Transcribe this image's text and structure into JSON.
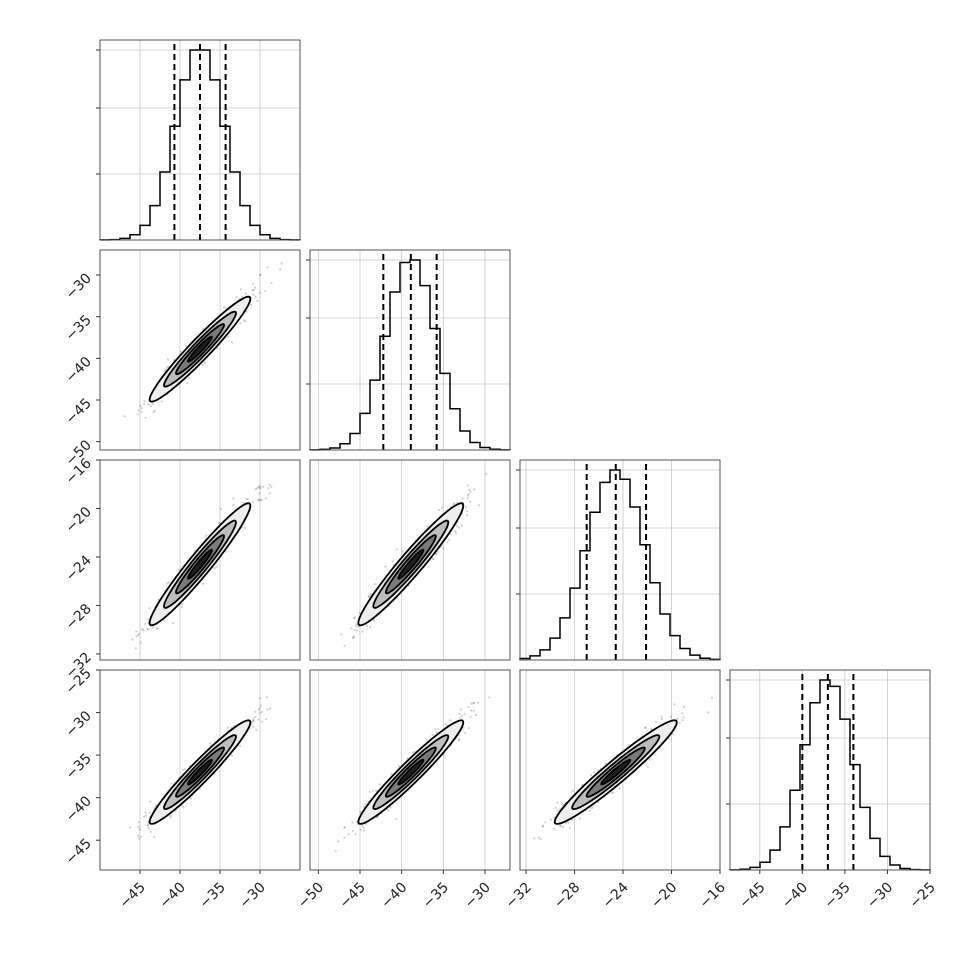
{
  "chart_data": {
    "type": "corner",
    "grid": true,
    "params": [
      {
        "range": [
          -50,
          -25
        ],
        "ticks": [
          -45,
          -40,
          -35,
          -30
        ],
        "tick_labels": [
          "−45",
          "−40",
          "−35",
          "−30"
        ],
        "mean": -37.5,
        "sd": 3.0,
        "quantiles": [
          -40.7,
          -37.5,
          -34.3
        ]
      },
      {
        "range": [
          -51,
          -27
        ],
        "ticks": [
          -50,
          -45,
          -40,
          -35,
          -30
        ],
        "tick_labels": [
          "−50",
          "−45",
          "−40",
          "−35",
          "−30"
        ],
        "mean": -38.9,
        "sd": 3.0,
        "quantiles": [
          -42.2,
          -38.9,
          -35.8
        ]
      },
      {
        "range": [
          -32.5,
          -16
        ],
        "ticks": [
          -32,
          -28,
          -24,
          -20,
          -16
        ],
        "tick_labels": [
          "−32",
          "−28",
          "−24",
          "−20",
          "−16"
        ],
        "mean": -24.6,
        "sd": 2.4,
        "quantiles": [
          -27.0,
          -24.6,
          -22.1
        ]
      },
      {
        "range": [
          -48.5,
          -25
        ],
        "ticks": [
          -45,
          -40,
          -35,
          -30,
          -25
        ],
        "tick_labels": [
          "−45",
          "−40",
          "−35",
          "−30",
          "−25"
        ],
        "mean": -37.0,
        "sd": 2.9,
        "quantiles": [
          -40.0,
          -37.0,
          -34.0
        ]
      }
    ],
    "correlation": 0.96,
    "hist_bins": 20,
    "scatter_points_per_panel": 700
  }
}
